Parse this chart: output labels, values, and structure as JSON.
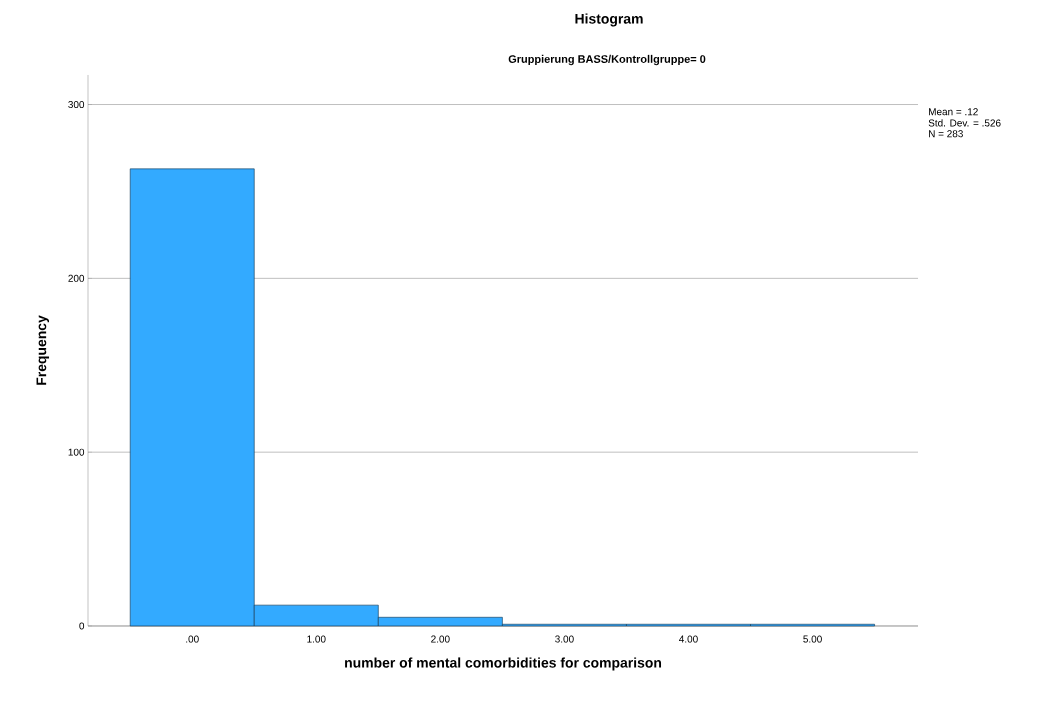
{
  "chart_data": {
    "type": "histogram",
    "title": "Histogram",
    "subtitle": "Gruppierung BASS/Kontrollgruppe= 0",
    "xlabel": "number of mental comorbidities for comparison",
    "ylabel": "Frequency",
    "bins": [
      -0.5,
      0.5,
      1.5,
      2.5,
      3.5,
      4.5,
      5.5
    ],
    "values": [
      263,
      12,
      5,
      1,
      1,
      1
    ],
    "color": "#33aaff",
    "xlim": [
      -0.84,
      5.85
    ],
    "ylim": [
      0,
      317
    ],
    "xticks": [
      {
        "value": 0,
        "label": ".00"
      },
      {
        "value": 1,
        "label": "1.00"
      },
      {
        "value": 2,
        "label": "2.00"
      },
      {
        "value": 3,
        "label": "3.00"
      },
      {
        "value": 4,
        "label": "4.00"
      },
      {
        "value": 5,
        "label": "5.00"
      }
    ],
    "yticks": [
      0,
      100,
      200,
      300
    ],
    "grid": "y",
    "annotations": [
      "Mean = .12",
      "Std. Dev. = .526",
      "N = 283"
    ]
  }
}
